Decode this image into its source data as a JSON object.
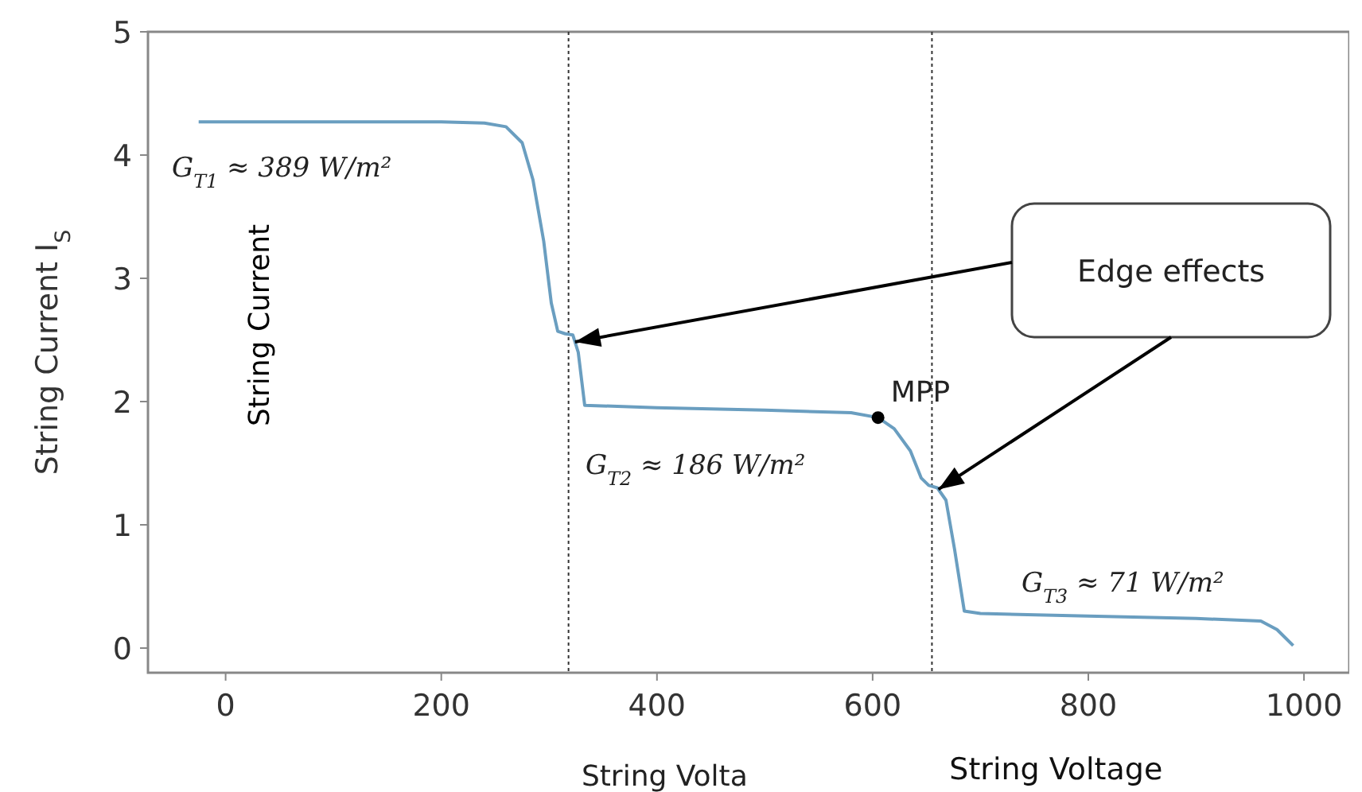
{
  "chart_data": {
    "type": "line",
    "xlabel": "String Voltage",
    "ylabel": "String Current I$_{S}$",
    "xlim": [
      -72,
      1042
    ],
    "ylim": [
      -0.2,
      5
    ],
    "xticks": [
      0,
      200,
      400,
      600,
      800,
      1000
    ],
    "yticks": [
      0,
      1,
      2,
      3,
      4,
      5
    ],
    "grid": false,
    "series": [
      {
        "color": "#6a9ec0",
        "x": [
          -25,
          100,
          200,
          240,
          260,
          275,
          285,
          295,
          302,
          308,
          315,
          322,
          327,
          333,
          400,
          500,
          580,
          605,
          620,
          635,
          645,
          652,
          660,
          668,
          676,
          685,
          700,
          800,
          900,
          960,
          975,
          990
        ],
        "values": [
          4.27,
          4.27,
          4.27,
          4.26,
          4.23,
          4.1,
          3.8,
          3.3,
          2.8,
          2.57,
          2.55,
          2.54,
          2.4,
          1.97,
          1.95,
          1.93,
          1.91,
          1.87,
          1.78,
          1.6,
          1.38,
          1.32,
          1.3,
          1.2,
          0.8,
          0.3,
          0.28,
          0.26,
          0.24,
          0.22,
          0.15,
          0.02
        ]
      },
      {
        "type": "scatter",
        "color": "#000000",
        "marker": "circle",
        "x": [
          605
        ],
        "values": [
          1.87
        ]
      }
    ],
    "ref_lines": [
      {
        "axis": "x",
        "value": 318,
        "line_style": "dotted",
        "color": "#333333"
      },
      {
        "axis": "x",
        "value": 655,
        "line_style": "dotted",
        "color": "#333333"
      }
    ],
    "annotations": [
      "G$_{T1}$ ≈ 389 W/m²",
      "G$_{T2}$ ≈ 186 W/m²",
      "G$_{T3}$ ≈ 71 W/m²",
      {
        "text": "MPP",
        "x": 605,
        "y": 1.87
      },
      "Edge effects",
      "String Current",
      "String Volta"
    ]
  }
}
